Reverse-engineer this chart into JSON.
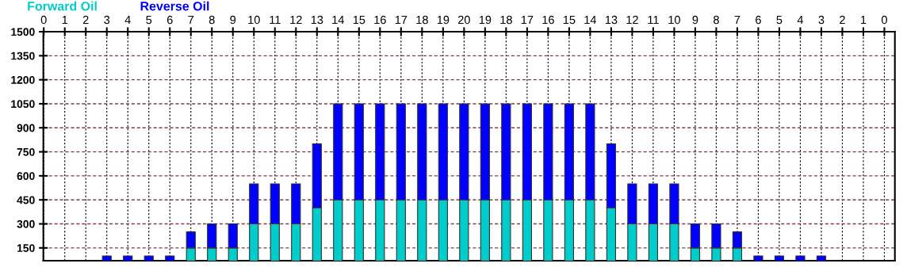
{
  "chart_data": {
    "type": "bar",
    "stacked": true,
    "categories": [
      "0",
      "1",
      "2",
      "3",
      "4",
      "5",
      "6",
      "7",
      "8",
      "9",
      "10",
      "11",
      "12",
      "13",
      "14",
      "15",
      "16",
      "17",
      "18",
      "19",
      "20",
      "19",
      "18",
      "17",
      "16",
      "15",
      "14",
      "13",
      "12",
      "11",
      "10",
      "9",
      "8",
      "7",
      "6",
      "5",
      "4",
      "3",
      "2",
      "1",
      "0"
    ],
    "series": [
      {
        "name": "Forward Oil",
        "color": "#00cccc",
        "values": [
          null,
          null,
          null,
          null,
          null,
          null,
          null,
          150,
          150,
          150,
          300,
          300,
          300,
          400,
          450,
          450,
          450,
          450,
          450,
          450,
          450,
          450,
          450,
          450,
          450,
          450,
          450,
          400,
          300,
          300,
          300,
          150,
          150,
          150,
          null,
          null,
          null,
          null,
          null,
          null,
          null
        ]
      },
      {
        "name": "Reverse Oil",
        "color": "#0000ff",
        "values": [
          null,
          null,
          null,
          100,
          100,
          100,
          100,
          100,
          150,
          150,
          250,
          250,
          250,
          400,
          600,
          600,
          600,
          600,
          600,
          600,
          600,
          600,
          600,
          600,
          600,
          600,
          600,
          400,
          250,
          250,
          250,
          150,
          150,
          100,
          100,
          100,
          100,
          100,
          null,
          null,
          null
        ]
      }
    ],
    "ylim": [
      70,
      1500
    ],
    "yticks": [
      150,
      300,
      450,
      600,
      750,
      900,
      1050,
      1200,
      1350,
      1500
    ],
    "grid": true,
    "legend": "top left"
  }
}
